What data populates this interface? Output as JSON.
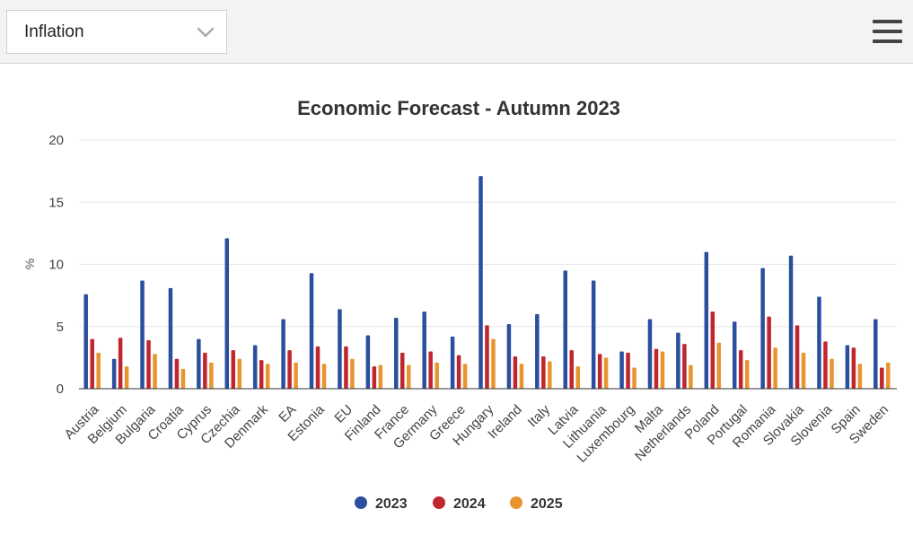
{
  "selector": {
    "value": "Inflation",
    "icon": "chevron-down-icon"
  },
  "menu": {
    "icon": "hamburger-menu-icon"
  },
  "chart_data": {
    "type": "bar",
    "title": "Economic Forecast - Autumn 2023",
    "xlabel": "",
    "ylabel": "%",
    "ylim": [
      0,
      20
    ],
    "yticks": [
      0,
      5,
      10,
      15,
      20
    ],
    "grid": true,
    "legend_position": "bottom-center",
    "categories": [
      "Austria",
      "Belgium",
      "Bulgaria",
      "Croatia",
      "Cyprus",
      "Czechia",
      "Denmark",
      "EA",
      "Estonia",
      "EU",
      "Finland",
      "France",
      "Germany",
      "Greece",
      "Hungary",
      "Ireland",
      "Italy",
      "Latvia",
      "Lithuania",
      "Luxembourg",
      "Malta",
      "Netherlands",
      "Poland",
      "Portugal",
      "Romania",
      "Slovakia",
      "Slovenia",
      "Spain",
      "Sweden"
    ],
    "series": [
      {
        "name": "2023",
        "color": "#2a4f9e",
        "values": [
          7.6,
          2.4,
          8.7,
          8.1,
          4.0,
          12.1,
          3.5,
          5.6,
          9.3,
          6.4,
          4.3,
          5.7,
          6.2,
          4.2,
          17.1,
          5.2,
          6.0,
          9.5,
          8.7,
          3.0,
          5.6,
          4.5,
          11.0,
          5.4,
          9.7,
          10.7,
          7.4,
          3.5,
          5.6
        ]
      },
      {
        "name": "2024",
        "color": "#c0262d",
        "values": [
          4.0,
          4.1,
          3.9,
          2.4,
          2.9,
          3.1,
          2.3,
          3.1,
          3.4,
          3.4,
          1.8,
          2.9,
          3.0,
          2.7,
          5.1,
          2.6,
          2.6,
          3.1,
          2.8,
          2.9,
          3.2,
          3.6,
          6.2,
          3.1,
          5.8,
          5.1,
          3.8,
          3.3,
          1.7
        ]
      },
      {
        "name": "2025",
        "color": "#e89530",
        "values": [
          2.9,
          1.8,
          2.8,
          1.6,
          2.1,
          2.4,
          2.0,
          2.1,
          2.0,
          2.4,
          1.9,
          1.9,
          2.1,
          2.0,
          4.0,
          2.0,
          2.2,
          1.8,
          2.5,
          1.7,
          3.0,
          1.9,
          3.7,
          2.3,
          3.3,
          2.9,
          2.4,
          2.0,
          2.1
        ]
      }
    ]
  }
}
